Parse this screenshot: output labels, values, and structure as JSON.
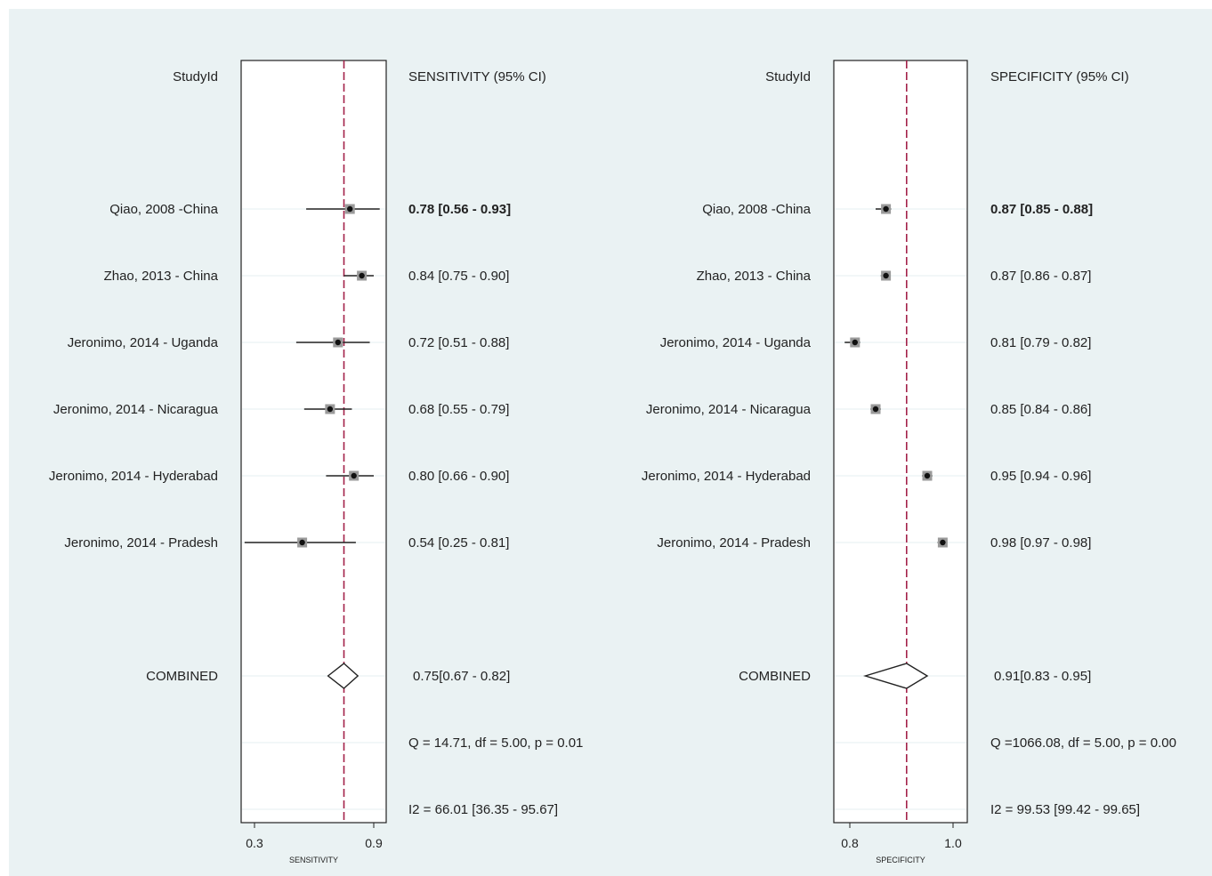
{
  "chart_data": [
    {
      "type": "forest",
      "study_header": "StudyId",
      "estimate_header": "SENSITIVITY (95% CI)",
      "xlabel": "SENSITIVITY",
      "xlim": [
        0.3,
        0.9
      ],
      "ticks": [
        "0.3",
        "0.9"
      ],
      "reference_line": 0.75,
      "studies": [
        {
          "label": "Qiao, 2008 -China",
          "estimate": 0.78,
          "ci": [
            0.56,
            0.93
          ],
          "text": "0.78 [0.56 - 0.93]",
          "bold": true
        },
        {
          "label": "Zhao, 2013 - China",
          "estimate": 0.84,
          "ci": [
            0.75,
            0.9
          ],
          "text": "0.84 [0.75 - 0.90]",
          "bold": false
        },
        {
          "label": "Jeronimo, 2014 - Uganda",
          "estimate": 0.72,
          "ci": [
            0.51,
            0.88
          ],
          "text": "0.72 [0.51 - 0.88]",
          "bold": false
        },
        {
          "label": "Jeronimo, 2014 - Nicaragua",
          "estimate": 0.68,
          "ci": [
            0.55,
            0.79
          ],
          "text": "0.68 [0.55 - 0.79]",
          "bold": false
        },
        {
          "label": "Jeronimo, 2014 - Hyderabad",
          "estimate": 0.8,
          "ci": [
            0.66,
            0.9
          ],
          "text": "0.80 [0.66 - 0.90]",
          "bold": false
        },
        {
          "label": "Jeronimo, 2014 - Pradesh",
          "estimate": 0.54,
          "ci": [
            0.25,
            0.81
          ],
          "text": "0.54 [0.25 - 0.81]",
          "bold": false
        }
      ],
      "combined": {
        "label": "COMBINED",
        "estimate": 0.75,
        "ci": [
          0.67,
          0.82
        ],
        "text": "0.75[0.67 - 0.82]"
      },
      "q_stat": "Q = 14.71, df = 5.00, p =  0.01",
      "i2_stat": "I2 = 66.01 [36.35 - 95.67]"
    },
    {
      "type": "forest",
      "study_header": "StudyId",
      "estimate_header": "SPECIFICITY (95% CI)",
      "xlabel": "SPECIFICITY",
      "xlim": [
        0.8,
        1.0
      ],
      "ticks": [
        "0.8",
        "1.0"
      ],
      "reference_line": 0.91,
      "studies": [
        {
          "label": "Qiao, 2008 -China",
          "estimate": 0.87,
          "ci": [
            0.85,
            0.88
          ],
          "text": "0.87 [0.85 - 0.88]",
          "bold": true
        },
        {
          "label": "Zhao, 2013 - China",
          "estimate": 0.87,
          "ci": [
            0.86,
            0.87
          ],
          "text": "0.87 [0.86 - 0.87]",
          "bold": false
        },
        {
          "label": "Jeronimo, 2014 - Uganda",
          "estimate": 0.81,
          "ci": [
            0.79,
            0.82
          ],
          "text": "0.81 [0.79 - 0.82]",
          "bold": false
        },
        {
          "label": "Jeronimo, 2014 - Nicaragua",
          "estimate": 0.85,
          "ci": [
            0.84,
            0.86
          ],
          "text": "0.85 [0.84 - 0.86]",
          "bold": false
        },
        {
          "label": "Jeronimo, 2014 - Hyderabad",
          "estimate": 0.95,
          "ci": [
            0.94,
            0.96
          ],
          "text": "0.95 [0.94 - 0.96]",
          "bold": false
        },
        {
          "label": "Jeronimo, 2014 - Pradesh",
          "estimate": 0.98,
          "ci": [
            0.97,
            0.98
          ],
          "text": "0.98 [0.97 - 0.98]",
          "bold": false
        }
      ],
      "combined": {
        "label": "COMBINED",
        "estimate": 0.91,
        "ci": [
          0.83,
          0.95
        ],
        "text": "0.91[0.83 - 0.95]"
      },
      "q_stat": "Q =1066.08, df = 5.00, p =  0.00",
      "i2_stat": "I2 = 99.53 [99.42 - 99.65]"
    }
  ],
  "colors": {
    "page_background": "#ffffff",
    "outer_background": "#eaf2f3",
    "panel_background": "#ffffff",
    "gridline": "#eaf2f3",
    "reference_line": "#a3224a",
    "ink": "#222222",
    "marker_box": "#9a9a9a"
  }
}
